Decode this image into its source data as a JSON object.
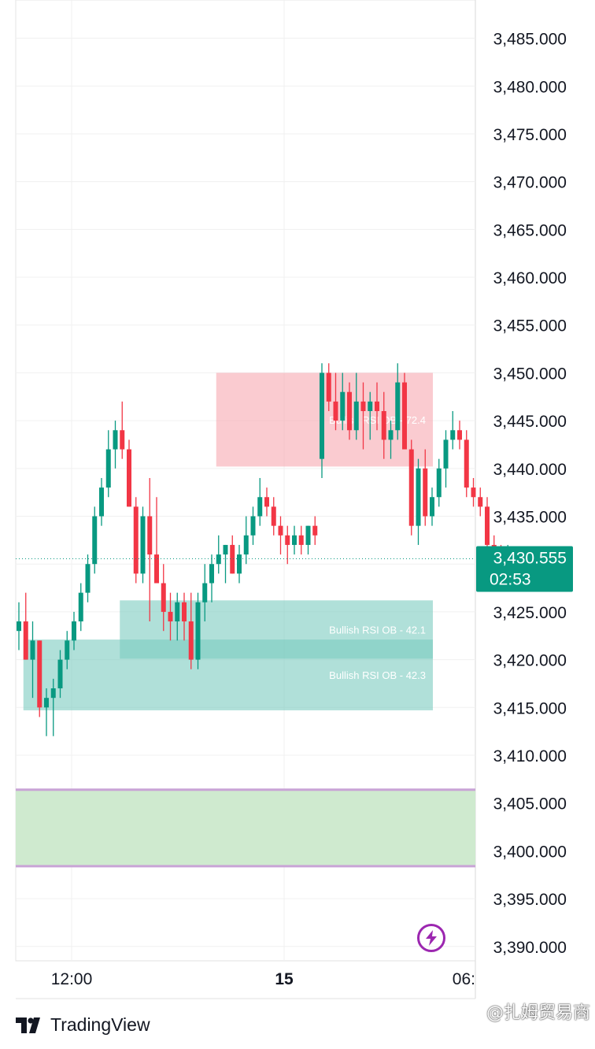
{
  "chart_data": {
    "type": "candlestick",
    "y_axis": {
      "ticks": [
        "3,485.000",
        "3,480.000",
        "3,475.000",
        "3,470.000",
        "3,465.000",
        "3,460.000",
        "3,455.000",
        "3,450.000",
        "3,445.000",
        "3,440.000",
        "3,435.000",
        "3,430.000",
        "3,425.000",
        "3,420.000",
        "3,415.000",
        "3,410.000",
        "3,405.000",
        "3,400.000",
        "3,395.000",
        "3,390.000"
      ],
      "ylim": [
        3388.5,
        3489
      ]
    },
    "x_axis": {
      "ticks": [
        {
          "label": "12:00",
          "bold": false
        },
        {
          "label": "15",
          "bold": true
        },
        {
          "label": "06:",
          "bold": false
        }
      ]
    },
    "current_price": {
      "value": "3,430.555",
      "countdown": "02:53",
      "color": "#089981"
    },
    "colors": {
      "up": "#089981",
      "down": "#f23645",
      "bear_zone": "#f7a8b1",
      "bull_zone": "#7ccbbf",
      "demand_zone": "#cfeacf",
      "demand_border": "#c9a4d6"
    },
    "zones": [
      {
        "label": "Bullish RSI OB  - 72.4",
        "kind": "bear",
        "start": 29,
        "end": 42,
        "top": 3450,
        "bottom": 3440.2
      },
      {
        "label": "Bullish RSI OB  - 42.1",
        "kind": "bull",
        "start": 15,
        "end": 42,
        "top": 3426.2,
        "bottom": 3420.1
      },
      {
        "label": "Bullish RSI OB  - 42.3",
        "kind": "bull",
        "start": 1,
        "end": 42,
        "top": 3422.1,
        "bottom": 3414.7
      },
      {
        "label": "",
        "kind": "demand",
        "start": 0,
        "end": 48,
        "top": 3406.4,
        "bottom": 3398.4
      }
    ],
    "candles": [
      {
        "o": 3423,
        "h": 3426,
        "l": 3421,
        "c": 3424
      },
      {
        "o": 3424,
        "h": 3427,
        "l": 3420,
        "c": 3420
      },
      {
        "o": 3420,
        "h": 3424,
        "l": 3416,
        "c": 3422
      },
      {
        "o": 3422,
        "h": 3422,
        "l": 3414,
        "c": 3415
      },
      {
        "o": 3415,
        "h": 3417,
        "l": 3412,
        "c": 3416
      },
      {
        "o": 3416,
        "h": 3418,
        "l": 3412,
        "c": 3417
      },
      {
        "o": 3417,
        "h": 3421,
        "l": 3416,
        "c": 3420
      },
      {
        "o": 3420,
        "h": 3423,
        "l": 3419,
        "c": 3422
      },
      {
        "o": 3422,
        "h": 3425,
        "l": 3421,
        "c": 3424
      },
      {
        "o": 3424,
        "h": 3428,
        "l": 3423,
        "c": 3427
      },
      {
        "o": 3427,
        "h": 3431,
        "l": 3426,
        "c": 3430
      },
      {
        "o": 3430,
        "h": 3436,
        "l": 3429,
        "c": 3435
      },
      {
        "o": 3435,
        "h": 3439,
        "l": 3434,
        "c": 3438
      },
      {
        "o": 3438,
        "h": 3444,
        "l": 3437,
        "c": 3442
      },
      {
        "o": 3442,
        "h": 3445,
        "l": 3440,
        "c": 3444
      },
      {
        "o": 3444,
        "h": 3447,
        "l": 3441,
        "c": 3442
      },
      {
        "o": 3442,
        "h": 3443,
        "l": 3436,
        "c": 3436
      },
      {
        "o": 3436,
        "h": 3437,
        "l": 3428,
        "c": 3429
      },
      {
        "o": 3429,
        "h": 3436,
        "l": 3428,
        "c": 3435
      },
      {
        "o": 3435,
        "h": 3439,
        "l": 3424,
        "c": 3431
      },
      {
        "o": 3431,
        "h": 3437,
        "l": 3428,
        "c": 3428
      },
      {
        "o": 3428,
        "h": 3430,
        "l": 3423,
        "c": 3425
      },
      {
        "o": 3425,
        "h": 3427,
        "l": 3422,
        "c": 3424
      },
      {
        "o": 3424,
        "h": 3427,
        "l": 3422,
        "c": 3426
      },
      {
        "o": 3426,
        "h": 3427,
        "l": 3422,
        "c": 3424
      },
      {
        "o": 3424,
        "h": 3427,
        "l": 3419,
        "c": 3420
      },
      {
        "o": 3420,
        "h": 3427,
        "l": 3419,
        "c": 3426
      },
      {
        "o": 3426,
        "h": 3430,
        "l": 3424,
        "c": 3428
      },
      {
        "o": 3428,
        "h": 3431,
        "l": 3426,
        "c": 3430
      },
      {
        "o": 3430,
        "h": 3433,
        "l": 3429,
        "c": 3431
      },
      {
        "o": 3431,
        "h": 3432,
        "l": 3428,
        "c": 3432
      },
      {
        "o": 3432,
        "h": 3433,
        "l": 3429,
        "c": 3429
      },
      {
        "o": 3429,
        "h": 3432,
        "l": 3428,
        "c": 3431
      },
      {
        "o": 3431,
        "h": 3435,
        "l": 3430,
        "c": 3433
      },
      {
        "o": 3433,
        "h": 3436,
        "l": 3432,
        "c": 3435
      },
      {
        "o": 3435,
        "h": 3439,
        "l": 3434,
        "c": 3437
      },
      {
        "o": 3437,
        "h": 3438,
        "l": 3435,
        "c": 3436
      },
      {
        "o": 3436,
        "h": 3437,
        "l": 3433,
        "c": 3434
      },
      {
        "o": 3434,
        "h": 3435,
        "l": 3431,
        "c": 3433
      },
      {
        "o": 3433,
        "h": 3434,
        "l": 3430,
        "c": 3432
      },
      {
        "o": 3432,
        "h": 3434,
        "l": 3431,
        "c": 3433
      },
      {
        "o": 3433,
        "h": 3434,
        "l": 3431,
        "c": 3432
      },
      {
        "o": 3432,
        "h": 3434,
        "l": 3431,
        "c": 3434
      },
      {
        "o": 3434,
        "h": 3435,
        "l": 3432,
        "c": 3433
      },
      {
        "o": 3441,
        "h": 3451,
        "l": 3439,
        "c": 3450
      },
      {
        "o": 3450,
        "h": 3451,
        "l": 3446,
        "c": 3447
      },
      {
        "o": 3447,
        "h": 3450,
        "l": 3444,
        "c": 3445
      },
      {
        "o": 3445,
        "h": 3450,
        "l": 3444,
        "c": 3448
      },
      {
        "o": 3448,
        "h": 3449,
        "l": 3443,
        "c": 3444
      },
      {
        "o": 3444,
        "h": 3450,
        "l": 3443,
        "c": 3447
      },
      {
        "o": 3447,
        "h": 3449,
        "l": 3442,
        "c": 3446
      },
      {
        "o": 3446,
        "h": 3448,
        "l": 3443,
        "c": 3447
      },
      {
        "o": 3447,
        "h": 3449,
        "l": 3444,
        "c": 3446
      },
      {
        "o": 3446,
        "h": 3448,
        "l": 3441,
        "c": 3443
      },
      {
        "o": 3443,
        "h": 3445,
        "l": 3441,
        "c": 3444
      },
      {
        "o": 3444,
        "h": 3451,
        "l": 3443,
        "c": 3449
      },
      {
        "o": 3449,
        "h": 3450,
        "l": 3443,
        "c": 3442
      },
      {
        "o": 3442,
        "h": 3443,
        "l": 3433,
        "c": 3434
      },
      {
        "o": 3434,
        "h": 3441,
        "l": 3432,
        "c": 3440
      },
      {
        "o": 3440,
        "h": 3442,
        "l": 3434,
        "c": 3435
      },
      {
        "o": 3435,
        "h": 3438,
        "l": 3434,
        "c": 3437
      },
      {
        "o": 3437,
        "h": 3441,
        "l": 3436,
        "c": 3440
      },
      {
        "o": 3440,
        "h": 3444,
        "l": 3438,
        "c": 3443
      },
      {
        "o": 3443,
        "h": 3446,
        "l": 3442,
        "c": 3444
      },
      {
        "o": 3444,
        "h": 3445,
        "l": 3442,
        "c": 3443
      },
      {
        "o": 3443,
        "h": 3444,
        "l": 3437,
        "c": 3438
      },
      {
        "o": 3438,
        "h": 3439,
        "l": 3436,
        "c": 3437
      },
      {
        "o": 3437,
        "h": 3438,
        "l": 3435,
        "c": 3436
      },
      {
        "o": 3436,
        "h": 3437,
        "l": 3431,
        "c": 3432
      },
      {
        "o": 3432,
        "h": 3433,
        "l": 3430,
        "c": 3430
      },
      {
        "o": 3430,
        "h": 3432,
        "l": 3429,
        "c": 3429
      },
      {
        "o": 3429,
        "h": 3432,
        "l": 3429,
        "c": 3430
      }
    ]
  },
  "branding": {
    "name": "TradingView",
    "watermark": "@扎姆贸易商"
  }
}
